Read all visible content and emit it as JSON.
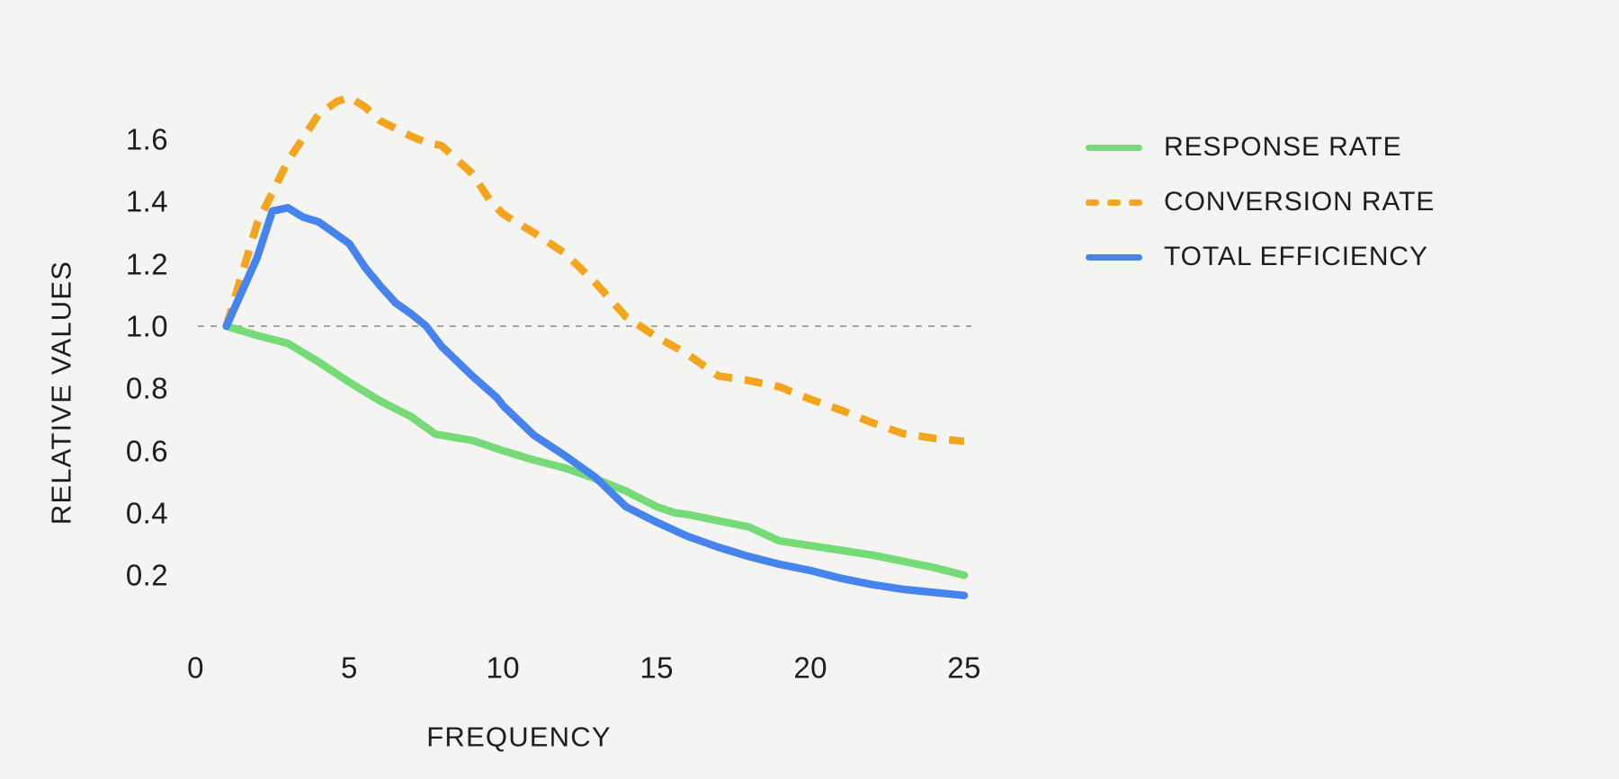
{
  "page": {
    "background_color": "#f4f4f2",
    "text_color": "#1d1d1d"
  },
  "chart_data": {
    "type": "line",
    "title": "",
    "xlabel": "FREQUENCY",
    "ylabel": "RELATIVE VALUES",
    "x_ticks": [
      "0",
      "5",
      "10",
      "15",
      "20",
      "25"
    ],
    "y_ticks": [
      "0.2",
      "0.4",
      "0.6",
      "0.8",
      "1.0",
      "1.2",
      "1.4",
      "1.6"
    ],
    "xlim": [
      0,
      25.3
    ],
    "ylim": [
      0.05,
      1.8
    ],
    "grid": false,
    "legend_position": "right-top",
    "reference_line": {
      "value": 1.0,
      "style": "dotted",
      "color": "#a4a4a4"
    },
    "series": [
      {
        "name": "RESPONSE RATE",
        "color": "#74db77",
        "line_style": "solid",
        "points": [
          [
            1,
            1.0
          ],
          [
            2,
            0.97
          ],
          [
            3,
            0.945
          ],
          [
            4,
            0.885
          ],
          [
            5,
            0.82
          ],
          [
            6,
            0.76
          ],
          [
            7,
            0.71
          ],
          [
            7.8,
            0.653
          ],
          [
            9,
            0.633
          ],
          [
            10,
            0.6
          ],
          [
            11,
            0.57
          ],
          [
            12,
            0.545
          ],
          [
            13,
            0.51
          ],
          [
            14,
            0.47
          ],
          [
            15,
            0.42
          ],
          [
            15.6,
            0.4
          ],
          [
            16,
            0.395
          ],
          [
            17,
            0.375
          ],
          [
            18,
            0.355
          ],
          [
            19,
            0.31
          ],
          [
            20,
            0.295
          ],
          [
            21,
            0.28
          ],
          [
            22,
            0.265
          ],
          [
            23,
            0.245
          ],
          [
            24,
            0.225
          ],
          [
            25,
            0.2
          ]
        ]
      },
      {
        "name": "CONVERSION RATE",
        "color": "#f5a41c",
        "line_style": "dashed",
        "points": [
          [
            1,
            1.0
          ],
          [
            2,
            1.33
          ],
          [
            3,
            1.53
          ],
          [
            4,
            1.68
          ],
          [
            4.6,
            1.722
          ],
          [
            5,
            1.735
          ],
          [
            5.5,
            1.705
          ],
          [
            6,
            1.66
          ],
          [
            7,
            1.61
          ],
          [
            7.5,
            1.59
          ],
          [
            8,
            1.58
          ],
          [
            9,
            1.49
          ],
          [
            9.6,
            1.4
          ],
          [
            10,
            1.36
          ],
          [
            11,
            1.3
          ],
          [
            12,
            1.235
          ],
          [
            13,
            1.14
          ],
          [
            14,
            1.03
          ],
          [
            15,
            0.965
          ],
          [
            16,
            0.91
          ],
          [
            17,
            0.84
          ],
          [
            18,
            0.825
          ],
          [
            19,
            0.805
          ],
          [
            20,
            0.765
          ],
          [
            21,
            0.73
          ],
          [
            22,
            0.69
          ],
          [
            23,
            0.655
          ],
          [
            24,
            0.64
          ],
          [
            25,
            0.63
          ]
        ]
      },
      {
        "name": "TOTAL EFFICIENCY",
        "color": "#4584ee",
        "line_style": "solid",
        "points": [
          [
            1,
            1.0
          ],
          [
            2,
            1.22
          ],
          [
            2.5,
            1.37
          ],
          [
            3,
            1.38
          ],
          [
            3.5,
            1.35
          ],
          [
            4,
            1.335
          ],
          [
            4.5,
            1.3
          ],
          [
            5,
            1.265
          ],
          [
            5.5,
            1.19
          ],
          [
            6,
            1.13
          ],
          [
            6.5,
            1.075
          ],
          [
            7,
            1.04
          ],
          [
            7.5,
            1.0
          ],
          [
            8,
            0.935
          ],
          [
            9,
            0.84
          ],
          [
            9.8,
            0.77
          ],
          [
            10,
            0.745
          ],
          [
            11,
            0.65
          ],
          [
            12,
            0.585
          ],
          [
            13,
            0.515
          ],
          [
            14,
            0.42
          ],
          [
            15,
            0.37
          ],
          [
            16,
            0.325
          ],
          [
            17,
            0.29
          ],
          [
            18,
            0.26
          ],
          [
            19,
            0.235
          ],
          [
            20,
            0.215
          ],
          [
            21,
            0.19
          ],
          [
            22,
            0.17
          ],
          [
            23,
            0.155
          ],
          [
            24,
            0.145
          ],
          [
            25,
            0.135
          ]
        ]
      }
    ]
  }
}
